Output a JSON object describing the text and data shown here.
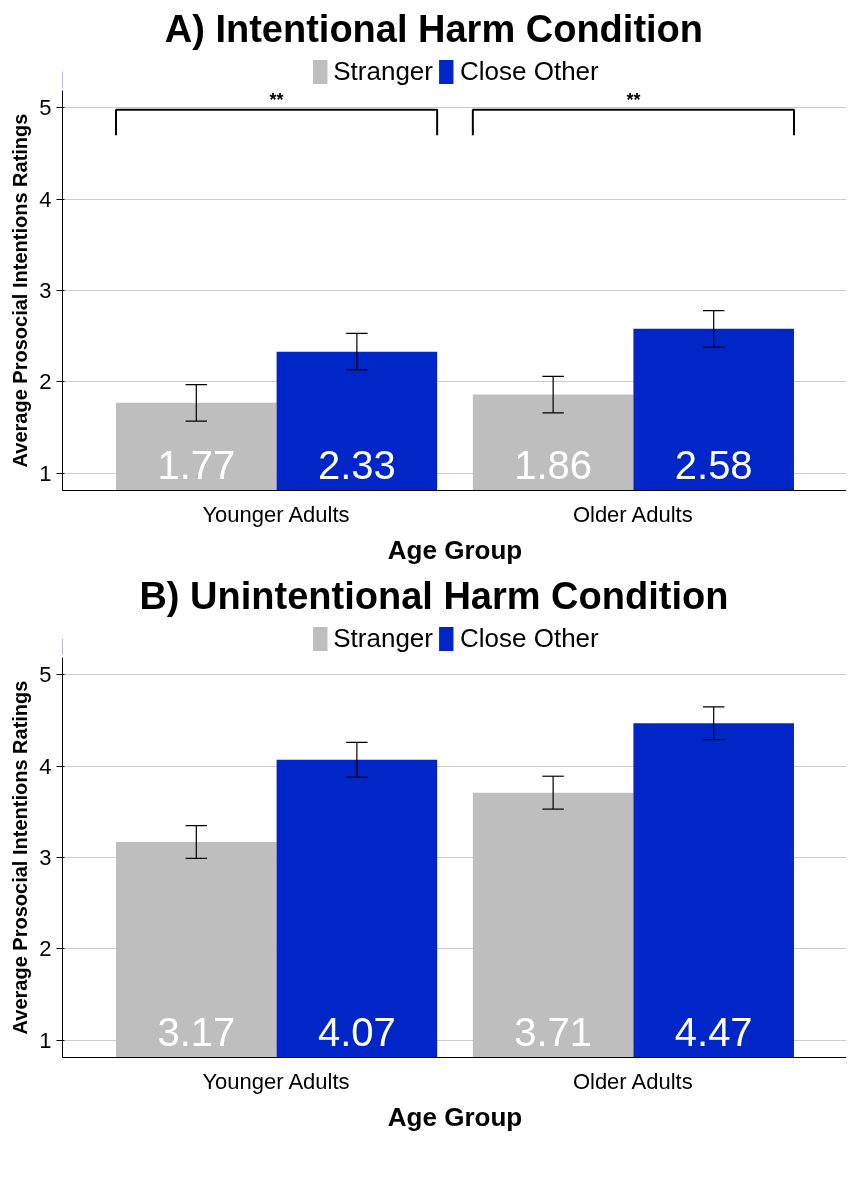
{
  "chart_data": [
    {
      "type": "bar",
      "title": "A)     Intentional Harm Condition",
      "xlabel": "Age Group",
      "ylabel": "Average Prosocial Intentions Ratings",
      "categories": [
        "Younger Adults",
        "Older Adults"
      ],
      "series": [
        {
          "name": "Stranger",
          "color": "#bebebe",
          "values": [
            1.77,
            1.86
          ],
          "errors": [
            0.2,
            0.2
          ]
        },
        {
          "name": "Close Other",
          "color": "#0026c8",
          "values": [
            2.33,
            2.58
          ],
          "errors": [
            0.2,
            0.2
          ]
        }
      ],
      "ylim": [
        0.81,
        5.19
      ],
      "yticks": [
        1,
        2,
        3,
        4,
        5
      ],
      "grid": "y",
      "legend": "top",
      "data_labels": true,
      "annotations": [
        "**",
        "**"
      ]
    },
    {
      "type": "bar",
      "title": "B)     Unintentional Harm Condition",
      "xlabel": "Age Group",
      "ylabel": "Average Prosocial Intentions Ratings",
      "categories": [
        "Younger Adults",
        "Older Adults"
      ],
      "series": [
        {
          "name": "Stranger",
          "color": "#bebebe",
          "values": [
            3.17,
            3.71
          ],
          "errors": [
            0.18,
            0.18
          ]
        },
        {
          "name": "Close Other",
          "color": "#0026c8",
          "values": [
            4.07,
            4.47
          ],
          "errors": [
            0.19,
            0.18
          ]
        }
      ],
      "ylim": [
        0.81,
        5.19
      ],
      "yticks": [
        1,
        2,
        3,
        4,
        5
      ],
      "grid": "y",
      "legend": "top",
      "data_labels": true
    }
  ]
}
